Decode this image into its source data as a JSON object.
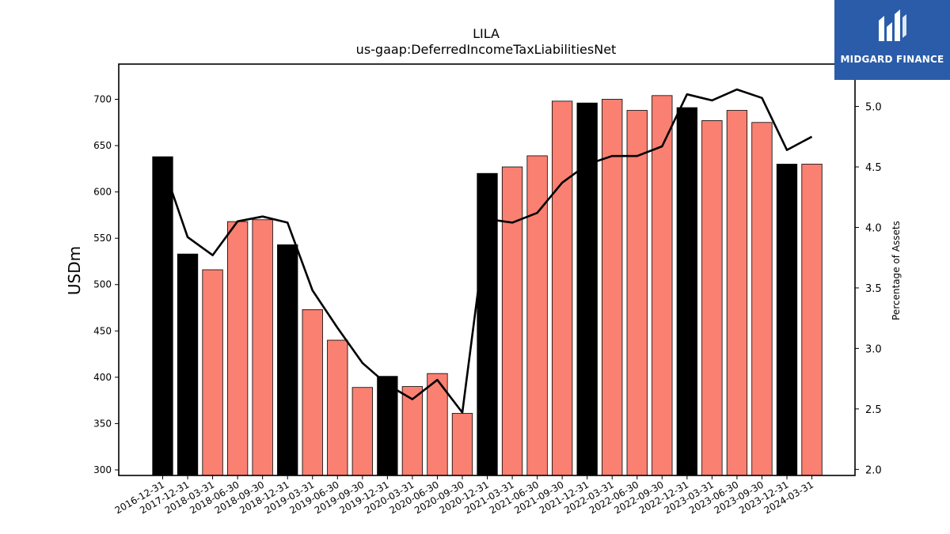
{
  "chart_data": {
    "type": "bar",
    "title": "LILA",
    "subtitle": "us-gaap:DeferredIncomeTaxLiabilitiesNet",
    "ylabel": "USDm",
    "y2label": "Percentage of Assets",
    "categories": [
      "2016-12-31",
      "2017-12-31",
      "2018-03-31",
      "2018-06-30",
      "2018-09-30",
      "2018-12-31",
      "2019-03-31",
      "2019-06-30",
      "2019-09-30",
      "2019-12-31",
      "2020-03-31",
      "2020-06-30",
      "2020-09-30",
      "2020-12-31",
      "2021-03-31",
      "2021-06-30",
      "2021-09-30",
      "2021-12-31",
      "2022-03-31",
      "2022-06-30",
      "2022-09-30",
      "2022-12-31",
      "2023-03-31",
      "2023-06-30",
      "2023-09-30",
      "2023-12-31",
      "2024-03-31"
    ],
    "series": [
      {
        "type": "bar",
        "values": [
          638,
          533,
          516,
          568,
          570,
          543,
          473,
          440,
          389,
          401,
          390,
          404,
          361,
          620,
          627,
          639,
          698,
          696,
          700,
          688,
          704,
          691,
          677,
          688,
          675,
          630,
          630
        ],
        "period_end": [
          true,
          true,
          false,
          false,
          false,
          true,
          false,
          false,
          false,
          true,
          false,
          false,
          false,
          true,
          false,
          false,
          false,
          true,
          false,
          false,
          false,
          true,
          false,
          false,
          false,
          true,
          false
        ]
      },
      {
        "type": "line",
        "axis": "right",
        "values": [
          4.52,
          3.92,
          3.77,
          4.05,
          4.09,
          4.04,
          3.48,
          3.17,
          2.88,
          2.7,
          2.58,
          2.74,
          2.47,
          4.07,
          4.04,
          4.12,
          4.37,
          4.52,
          4.59,
          4.59,
          4.67,
          5.1,
          5.05,
          5.14,
          5.07,
          4.64,
          4.75
        ]
      }
    ],
    "ylim": [
      294,
      738
    ],
    "y2lim": [
      1.95,
      5.35
    ],
    "yticks": [
      300,
      350,
      400,
      450,
      500,
      550,
      600,
      650,
      700
    ],
    "y2ticks": [
      "2.0",
      "2.5",
      "3.0",
      "3.5",
      "4.0",
      "4.5",
      "5.0"
    ],
    "colors": {
      "annual_bar": "#000000",
      "quarter_bar": "#fa8072",
      "line": "#000000"
    }
  },
  "logo": {
    "text": "MIDGARD FINANCE",
    "background": "#2a5caa"
  }
}
